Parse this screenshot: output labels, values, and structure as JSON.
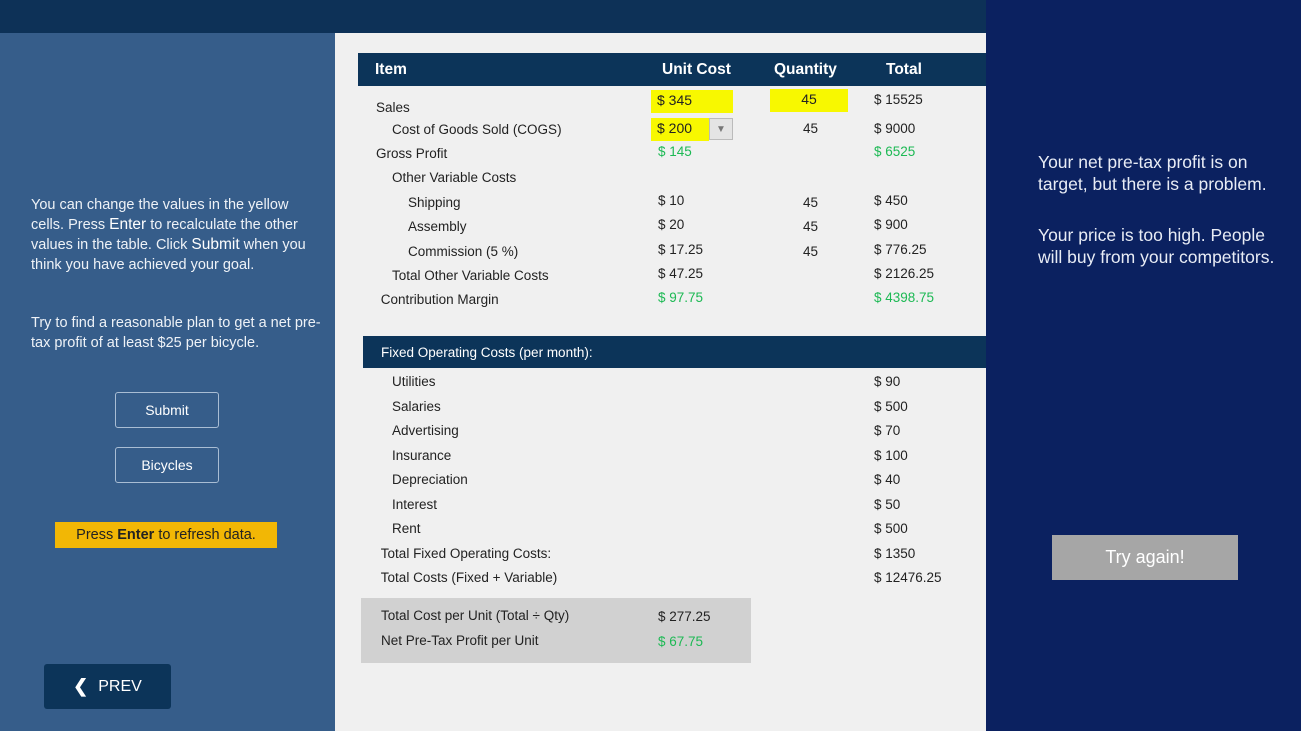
{
  "left": {
    "instr": [
      "You can change the values in the yellow cells. Press ",
      "Enter",
      " to recalculate the other values in the table. Click ",
      "Submit",
      " when you think you have achieved your goal."
    ],
    "goal": "Try to find a reasonable plan to get a net pre-tax profit of at least $25 per bicycle.",
    "submit_label": "Submit",
    "bicycles_label": "Bicycles",
    "refresh": [
      "Press",
      "Enter",
      "to refresh data."
    ],
    "prev_label": "PREV"
  },
  "table": {
    "headers": {
      "item": "Item",
      "unit_cost": "Unit Cost",
      "quantity": "Quantity",
      "total": "Total"
    },
    "sales": {
      "label": "Sales",
      "unit_cost": "$ 345",
      "quantity": "45",
      "total": "$ 15525"
    },
    "cogs": {
      "label": "Cost of Goods Sold (COGS)",
      "unit_cost": "$ 200",
      "quantity": "45",
      "total": "$ 9000"
    },
    "rows": [
      {
        "label": "Gross Profit",
        "indent": 0,
        "unit": "$ 145",
        "qty": "",
        "total": "$ 6525",
        "green": true
      },
      {
        "label": "Other Variable Costs",
        "indent": 1,
        "unit": "",
        "qty": "",
        "total": ""
      },
      {
        "label": "Shipping",
        "indent": 2,
        "unit": "$ 10",
        "qty": "45",
        "total": "$ 450"
      },
      {
        "label": "Assembly",
        "indent": 2,
        "unit": "$ 20",
        "qty": "45",
        "total": "$ 900"
      },
      {
        "label": "Commission (5 %)",
        "indent": 2,
        "unit": "$ 17.25",
        "qty": "45",
        "total": "$ 776.25"
      },
      {
        "label": "Total Other Variable Costs",
        "indent": 1,
        "unit": "$ 47.25",
        "qty": "",
        "total": "$ 2126.25"
      },
      {
        "label": "Contribution Margin",
        "indent": 0.3,
        "unit": "$ 97.75",
        "qty": "",
        "total": "$ 4398.75",
        "green": true
      }
    ],
    "fixed_header": "Fixed Operating Costs (per month):",
    "fixed": [
      {
        "label": "Utilities",
        "indent": 1,
        "total": "$ 90"
      },
      {
        "label": "Salaries",
        "indent": 1,
        "total": "$ 500"
      },
      {
        "label": "Advertising",
        "indent": 1,
        "total": "$ 70"
      },
      {
        "label": "Insurance",
        "indent": 1,
        "total": "$ 100"
      },
      {
        "label": "Depreciation",
        "indent": 1,
        "total": "$ 40"
      },
      {
        "label": "Interest",
        "indent": 1,
        "total": "$ 50"
      },
      {
        "label": "Rent",
        "indent": 1,
        "total": "$ 500"
      },
      {
        "label": "Total Fixed Operating Costs:",
        "indent": 0.3,
        "total": "$ 1350"
      },
      {
        "label": "Total Costs (Fixed + Variable)",
        "indent": 0.3,
        "total": "$ 12476.25"
      }
    ],
    "summary": [
      {
        "label": "Total Cost per Unit (Total ÷ Qty)",
        "value": "$ 277.25"
      },
      {
        "label": "Net Pre-Tax Profit per Unit",
        "value": "$ 67.75",
        "green": true
      }
    ]
  },
  "feedback": {
    "p1": "Your net pre-tax profit is on target, but there is a problem.",
    "p2": "Your price is too high. People will buy from your competitors.",
    "try_again": "Try again!"
  },
  "colors": {
    "yellow_cell": "#f8f800",
    "positive": "#1db954",
    "header": "#0c3459"
  }
}
